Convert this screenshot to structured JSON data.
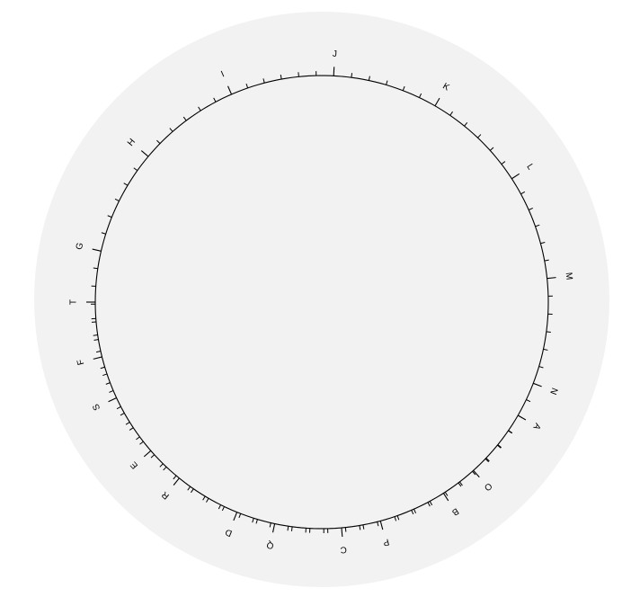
{
  "dial": {
    "background_color": "#f2f2f2",
    "line_color": "#000000",
    "labels": [
      "A",
      "B",
      "C",
      "D",
      "E",
      "F",
      "G",
      "H",
      "I",
      "J",
      "K",
      "L",
      "M",
      "N",
      "O",
      "P",
      "Q",
      "R",
      "S",
      "T"
    ],
    "label_positions_deg": [
      30,
      57.5,
      85,
      112,
      139,
      166,
      193,
      220,
      246.5,
      273,
      300,
      327,
      354,
      381,
      408,
      435,
      462,
      489,
      515,
      540
    ],
    "start_deg": 30,
    "end_deg": 540,
    "minor_ticks_between_labels": 5
  }
}
